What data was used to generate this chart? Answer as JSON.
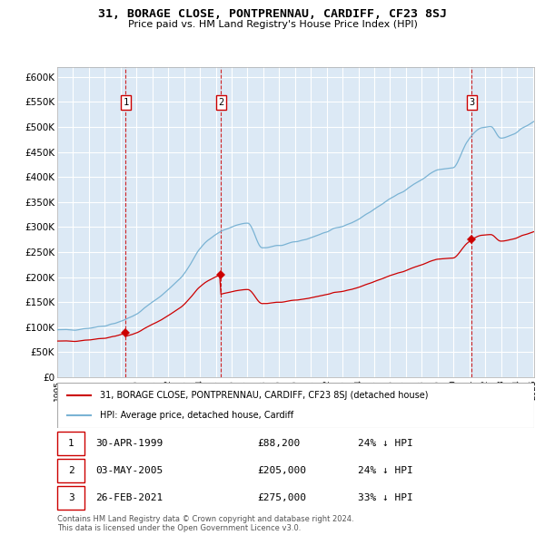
{
  "title": "31, BORAGE CLOSE, PONTPRENNAU, CARDIFF, CF23 8SJ",
  "subtitle": "Price paid vs. HM Land Registry's House Price Index (HPI)",
  "ylim": [
    0,
    620000
  ],
  "yticks": [
    0,
    50000,
    100000,
    150000,
    200000,
    250000,
    300000,
    350000,
    400000,
    450000,
    500000,
    550000,
    600000
  ],
  "bg_color": "#dce9f5",
  "grid_color": "#ffffff",
  "hpi_color": "#7ab3d4",
  "price_color": "#cc0000",
  "legend_entries": [
    "31, BORAGE CLOSE, PONTPRENNAU, CARDIFF, CF23 8SJ (detached house)",
    "HPI: Average price, detached house, Cardiff"
  ],
  "table_rows": [
    {
      "num": "1",
      "date": "30-APR-1999",
      "price": "£88,200",
      "hpi": "24% ↓ HPI"
    },
    {
      "num": "2",
      "date": "03-MAY-2005",
      "price": "£205,000",
      "hpi": "24% ↓ HPI"
    },
    {
      "num": "3",
      "date": "26-FEB-2021",
      "price": "£275,000",
      "hpi": "33% ↓ HPI"
    }
  ],
  "footnote": "Contains HM Land Registry data © Crown copyright and database right 2024.\nThis data is licensed under the Open Government Licence v3.0."
}
